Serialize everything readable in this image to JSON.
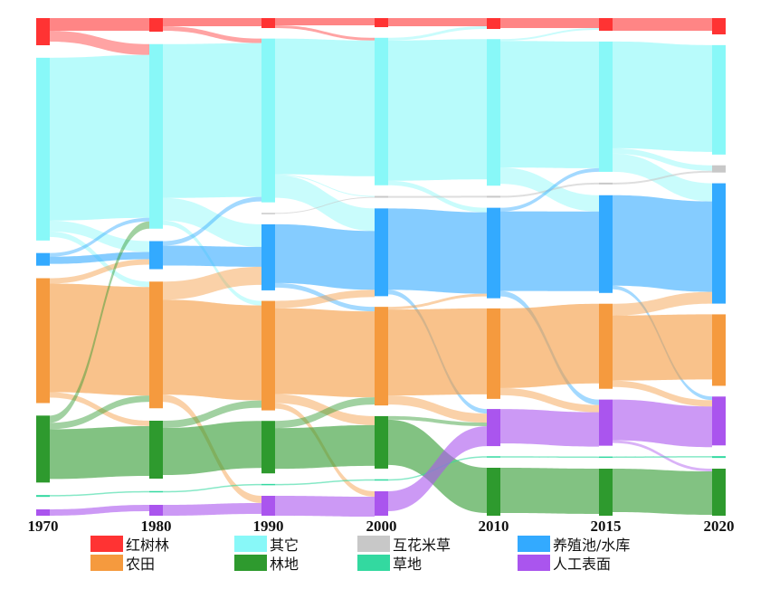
{
  "chart_data": {
    "type": "sankey",
    "title": "",
    "years": [
      "1970",
      "1980",
      "1990",
      "2000",
      "2010",
      "2015",
      "2020"
    ],
    "categories": [
      {
        "key": "mangrove",
        "label": "红树林",
        "color": "#ff3333"
      },
      {
        "key": "other",
        "label": "其它",
        "color": "#88f8f8"
      },
      {
        "key": "spartina",
        "label": "互花米草",
        "color": "#c8c8c8"
      },
      {
        "key": "pond",
        "label": "养殖池/水库",
        "color": "#33aaff"
      },
      {
        "key": "farmland",
        "label": "农田",
        "color": "#f59a3e"
      },
      {
        "key": "forest",
        "label": "林地",
        "color": "#2e9a2e"
      },
      {
        "key": "grass",
        "label": "草地",
        "color": "#33d9a0"
      },
      {
        "key": "artificial",
        "label": "人工表面",
        "color": "#aa55ee"
      }
    ],
    "node_order": {
      "1970": [
        "mangrove",
        "other",
        "spartina",
        "pond",
        "farmland",
        "forest",
        "grass",
        "artificial"
      ],
      "1980": [
        "mangrove",
        "other",
        "spartina",
        "pond",
        "farmland",
        "forest",
        "grass",
        "artificial"
      ],
      "1990": [
        "mangrove",
        "other",
        "spartina",
        "pond",
        "farmland",
        "forest",
        "grass",
        "artificial"
      ],
      "2000": [
        "mangrove",
        "other",
        "spartina",
        "pond",
        "farmland",
        "forest",
        "grass",
        "artificial"
      ],
      "2010": [
        "mangrove",
        "other",
        "spartina",
        "pond",
        "farmland",
        "artificial",
        "grass",
        "forest"
      ],
      "2015": [
        "mangrove",
        "other",
        "spartina",
        "pond",
        "farmland",
        "artificial",
        "grass",
        "forest"
      ],
      "2020": [
        "mangrove",
        "other",
        "spartina",
        "pond",
        "farmland",
        "artificial",
        "grass",
        "forest"
      ]
    },
    "node_values": {
      "1970": {
        "mangrove": 30,
        "other": 202,
        "spartina": 0,
        "pond": 14,
        "farmland": 138,
        "forest": 74,
        "grass": 2,
        "artificial": 7
      },
      "1980": {
        "mangrove": 15,
        "other": 204,
        "spartina": 0,
        "pond": 31,
        "farmland": 140,
        "forest": 64,
        "grass": 1.5,
        "artificial": 12
      },
      "1990": {
        "mangrove": 11,
        "other": 181,
        "spartina": 1,
        "pond": 73,
        "farmland": 121,
        "forest": 58,
        "grass": 1.5,
        "artificial": 22
      },
      "2000": {
        "mangrove": 10,
        "other": 163,
        "spartina": 2,
        "pond": 97,
        "farmland": 109,
        "forest": 58,
        "grass": 1.5,
        "artificial": 27
      },
      "2010": {
        "mangrove": 12,
        "other": 162,
        "spartina": 2,
        "pond": 100,
        "farmland": 100,
        "artificial": 41,
        "grass": 1.5,
        "forest": 53
      },
      "2015": {
        "mangrove": 14,
        "other": 144,
        "spartina": 2,
        "pond": 108,
        "farmland": 94,
        "artificial": 51,
        "grass": 1.5,
        "forest": 52
      },
      "2020": {
        "mangrove": 18,
        "other": 121,
        "spartina": 8,
        "pond": 133,
        "farmland": 79,
        "artificial": 54,
        "grass": 2,
        "forest": 52
      }
    },
    "flows": [
      [
        [
          "mangrove",
          "mangrove",
          14
        ],
        [
          "mangrove",
          "other",
          12
        ],
        [
          "other",
          "other",
          180
        ],
        [
          "other",
          "pond",
          12
        ],
        [
          "other",
          "farmland",
          6
        ],
        [
          "pond",
          "pond",
          8
        ],
        [
          "pond",
          "other",
          4
        ],
        [
          "farmland",
          "farmland",
          120
        ],
        [
          "farmland",
          "pond",
          6
        ],
        [
          "farmland",
          "forest",
          6
        ],
        [
          "forest",
          "forest",
          55
        ],
        [
          "forest",
          "other",
          8
        ],
        [
          "forest",
          "farmland",
          7
        ],
        [
          "grass",
          "grass",
          1.5
        ],
        [
          "artificial",
          "artificial",
          7
        ]
      ],
      [
        [
          "mangrove",
          "mangrove",
          9
        ],
        [
          "mangrove",
          "other",
          5
        ],
        [
          "other",
          "other",
          170
        ],
        [
          "other",
          "pond",
          25
        ],
        [
          "other",
          "farmland",
          5
        ],
        [
          "pond",
          "pond",
          22
        ],
        [
          "pond",
          "other",
          5
        ],
        [
          "farmland",
          "farmland",
          105
        ],
        [
          "farmland",
          "pond",
          20
        ],
        [
          "farmland",
          "artificial",
          8
        ],
        [
          "forest",
          "forest",
          52
        ],
        [
          "forest",
          "farmland",
          8
        ],
        [
          "grass",
          "grass",
          1.5
        ],
        [
          "artificial",
          "artificial",
          12
        ]
      ],
      [
        [
          "mangrove",
          "mangrove",
          8
        ],
        [
          "mangrove",
          "other",
          3
        ],
        [
          "other",
          "other",
          150
        ],
        [
          "other",
          "pond",
          25
        ],
        [
          "other",
          "spartina",
          1
        ],
        [
          "spartina",
          "spartina",
          1
        ],
        [
          "pond",
          "pond",
          65
        ],
        [
          "pond",
          "farmland",
          5
        ],
        [
          "farmland",
          "farmland",
          95
        ],
        [
          "farmland",
          "pond",
          8
        ],
        [
          "farmland",
          "forest",
          10
        ],
        [
          "farmland",
          "artificial",
          6
        ],
        [
          "forest",
          "forest",
          45
        ],
        [
          "forest",
          "farmland",
          8
        ],
        [
          "grass",
          "grass",
          1.5
        ],
        [
          "artificial",
          "artificial",
          22
        ]
      ],
      [
        [
          "mangrove",
          "mangrove",
          9
        ],
        [
          "other",
          "other",
          155
        ],
        [
          "other",
          "pond",
          5
        ],
        [
          "other",
          "mangrove",
          3
        ],
        [
          "spartina",
          "spartina",
          2
        ],
        [
          "pond",
          "pond",
          90
        ],
        [
          "pond",
          "artificial",
          5
        ],
        [
          "farmland",
          "farmland",
          95
        ],
        [
          "farmland",
          "artificial",
          10
        ],
        [
          "farmland",
          "pond",
          3
        ],
        [
          "forest",
          "forest",
          50
        ],
        [
          "forest",
          "artificial",
          4
        ],
        [
          "grass",
          "grass",
          1.5
        ],
        [
          "artificial",
          "artificial",
          22
        ]
      ],
      [
        [
          "mangrove",
          "mangrove",
          11
        ],
        [
          "other",
          "other",
          140
        ],
        [
          "other",
          "pond",
          18
        ],
        [
          "other",
          "mangrove",
          2
        ],
        [
          "spartina",
          "spartina",
          2
        ],
        [
          "pond",
          "pond",
          88
        ],
        [
          "pond",
          "artificial",
          6
        ],
        [
          "pond",
          "other",
          4
        ],
        [
          "farmland",
          "farmland",
          88
        ],
        [
          "farmland",
          "artificial",
          8
        ],
        [
          "artificial",
          "artificial",
          38
        ],
        [
          "grass",
          "grass",
          1.5
        ],
        [
          "forest",
          "forest",
          50
        ]
      ],
      [
        [
          "mangrove",
          "mangrove",
          14
        ],
        [
          "other",
          "other",
          118
        ],
        [
          "other",
          "pond",
          20
        ],
        [
          "other",
          "spartina",
          6
        ],
        [
          "spartina",
          "spartina",
          2
        ],
        [
          "pond",
          "pond",
          100
        ],
        [
          "pond",
          "artificial",
          4
        ],
        [
          "farmland",
          "farmland",
          72
        ],
        [
          "farmland",
          "pond",
          13
        ],
        [
          "farmland",
          "artificial",
          7
        ],
        [
          "artificial",
          "artificial",
          45
        ],
        [
          "artificial",
          "forest",
          3
        ],
        [
          "grass",
          "grass",
          1.5
        ],
        [
          "forest",
          "forest",
          48
        ]
      ]
    ],
    "legend_placement": "bottom"
  }
}
